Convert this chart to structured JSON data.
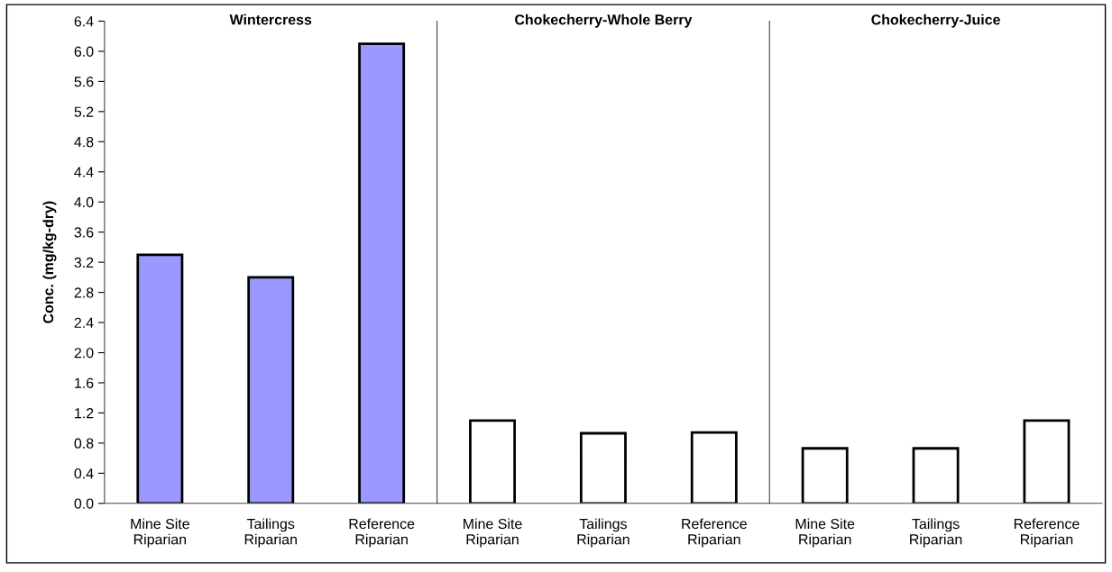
{
  "chart_data": [
    {
      "type": "bar",
      "title": "Wintercress",
      "ylabel": "Conc. (mg/kg-dry)",
      "categories": [
        "Mine Site\nRiparian",
        "Tailings\nRiparian",
        "Reference\nRiparian"
      ],
      "values": [
        3.3,
        3.0,
        6.1
      ],
      "color": "#9999ff",
      "ylim": [
        0,
        6.4
      ],
      "yticks": [
        {
          "value": 0,
          "label": "0.0"
        },
        {
          "value": 0.4,
          "label": "0.4"
        },
        {
          "value": 0.8,
          "label": "0.8"
        },
        {
          "value": 1.2,
          "label": "1.2"
        },
        {
          "value": 1.6,
          "label": "1.6"
        },
        {
          "value": 2.0,
          "label": "2.0"
        },
        {
          "value": 2.4,
          "label": "2.4"
        },
        {
          "value": 2.8,
          "label": "2.8"
        },
        {
          "value": 3.2,
          "label": "3.2"
        },
        {
          "value": 3.6,
          "label": "3.6"
        },
        {
          "value": 4.0,
          "label": "4.0"
        },
        {
          "value": 4.4,
          "label": "4.4"
        },
        {
          "value": 4.8,
          "label": "4.8"
        },
        {
          "value": 5.2,
          "label": "5.2"
        },
        {
          "value": 5.6,
          "label": "5.6"
        },
        {
          "value": 6.0,
          "label": "6.0"
        },
        {
          "value": 6.4,
          "label": "6.4"
        }
      ],
      "grid": false,
      "legend": false
    },
    {
      "type": "bar",
      "title": "Chokecherry-Whole Berry",
      "categories": [
        "Mine Site\nRiparian",
        "Tailings\nRiparian",
        "Reference\nRiparian"
      ],
      "values": [
        1.1,
        0.93,
        0.94
      ],
      "color": "#ffffff",
      "ylim": [
        0,
        6.4
      ],
      "tick_labels": "x",
      "grid": false,
      "legend": false
    },
    {
      "type": "bar",
      "title": "Chokecherry-Juice",
      "categories": [
        "Mine Site\nRiparian",
        "Tailings\nRiparian",
        "Reference\nRiparian"
      ],
      "values": [
        0.73,
        0.73,
        1.1
      ],
      "color": "#ffffff",
      "ylim": [
        0,
        6.4
      ],
      "tick_labels": "x",
      "grid": false,
      "legend": false
    }
  ]
}
